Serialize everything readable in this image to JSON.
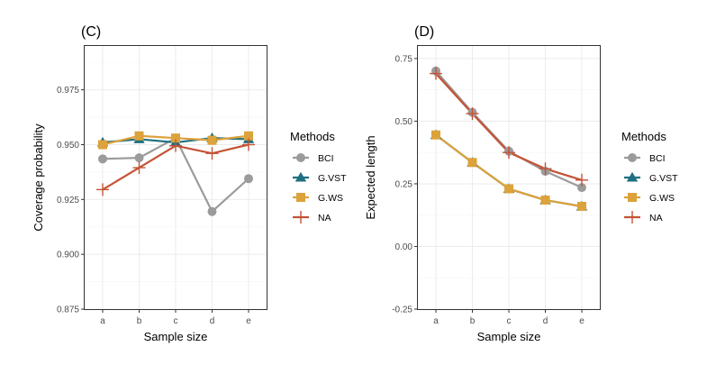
{
  "colors": {
    "BCI": "#9b9b9b",
    "G.VST": "#1f7080",
    "G.WS": "#dca23b",
    "NA": "#c45335",
    "grid_major": "#ebebeb",
    "grid_minor": "#f5f5f5",
    "border": "#333333",
    "tick_text": "#4d4d4d"
  },
  "legend": {
    "title": "Methods",
    "entries": [
      {
        "name": "BCI",
        "shape": "circle"
      },
      {
        "name": "G.VST",
        "shape": "triangle"
      },
      {
        "name": "G.WS",
        "shape": "square"
      },
      {
        "name": "NA",
        "shape": "plus"
      }
    ]
  },
  "chart_data": [
    {
      "panel_label": "(C)",
      "type": "line",
      "title": "(C)",
      "xlabel": "Sample size",
      "ylabel": "Coverage probability",
      "categories": [
        "a",
        "b",
        "c",
        "d",
        "e"
      ],
      "ylim": [
        0.875,
        0.995
      ],
      "yticks": [
        0.875,
        0.9,
        0.925,
        0.95,
        0.975
      ],
      "ytick_labels": [
        "0.875",
        "0.900",
        "0.925",
        "0.950",
        "0.975"
      ],
      "legend_title": "Methods",
      "series": [
        {
          "name": "BCI",
          "values": [
            0.9435,
            0.944,
            0.953,
            0.9195,
            0.9345
          ]
        },
        {
          "name": "G.VST",
          "values": [
            0.951,
            0.9525,
            0.951,
            0.953,
            0.9525
          ]
        },
        {
          "name": "G.WS",
          "values": [
            0.95,
            0.954,
            0.953,
            0.952,
            0.954
          ]
        },
        {
          "name": "NA",
          "values": [
            0.9295,
            0.9395,
            0.9495,
            0.946,
            0.95
          ]
        }
      ]
    },
    {
      "panel_label": "(D)",
      "type": "line",
      "title": "(D)",
      "xlabel": "Sample size",
      "ylabel": "Expected length",
      "categories": [
        "a",
        "b",
        "c",
        "d",
        "e"
      ],
      "ylim": [
        -0.25,
        0.8
      ],
      "yticks": [
        -0.25,
        0.0,
        0.25,
        0.5,
        0.75
      ],
      "ytick_labels": [
        "-0.25",
        "0.00",
        "0.25",
        "0.50",
        "0.75"
      ],
      "legend_title": "Methods",
      "series": [
        {
          "name": "BCI",
          "values": [
            0.7,
            0.535,
            0.38,
            0.3,
            0.235
          ]
        },
        {
          "name": "G.VST",
          "values": [
            0.445,
            0.335,
            0.23,
            0.185,
            0.16
          ]
        },
        {
          "name": "G.WS",
          "values": [
            0.445,
            0.335,
            0.23,
            0.185,
            0.16
          ]
        },
        {
          "name": "NA",
          "values": [
            0.69,
            0.53,
            0.375,
            0.31,
            0.265
          ]
        }
      ]
    }
  ]
}
